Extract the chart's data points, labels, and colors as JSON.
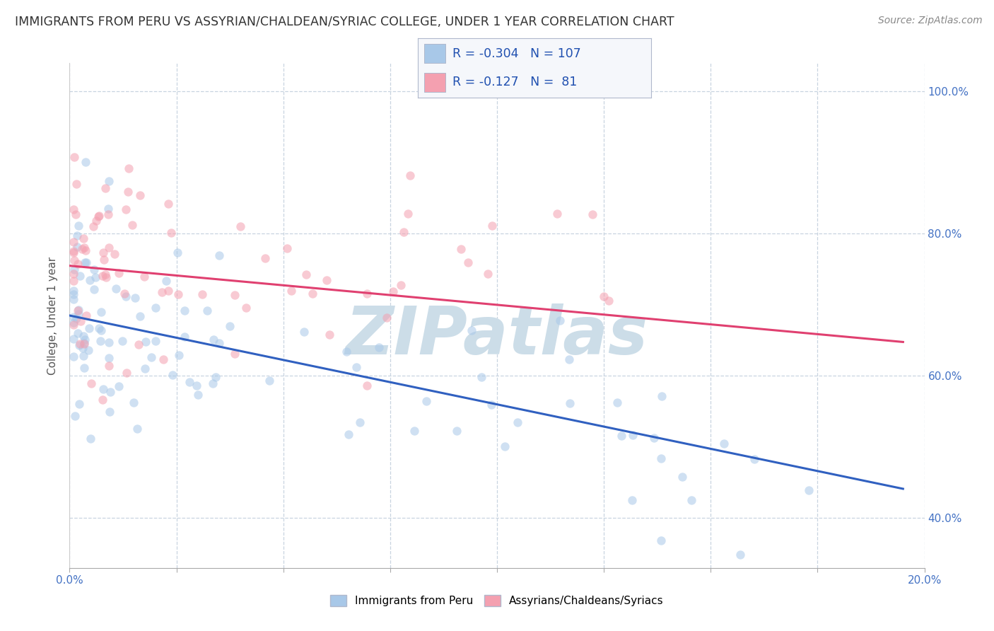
{
  "title": "IMMIGRANTS FROM PERU VS ASSYRIAN/CHALDEAN/SYRIAC COLLEGE, UNDER 1 YEAR CORRELATION CHART",
  "source": "Source: ZipAtlas.com",
  "ylabel": "College, Under 1 year",
  "xlim": [
    0.0,
    0.2
  ],
  "ylim": [
    0.33,
    1.04
  ],
  "xtick_positions": [
    0.0,
    0.025,
    0.05,
    0.075,
    0.1,
    0.125,
    0.15,
    0.175,
    0.2
  ],
  "ytick_positions": [
    0.4,
    0.6,
    0.8,
    1.0
  ],
  "ytick_labels": [
    "40.0%",
    "60.0%",
    "80.0%",
    "100.0%"
  ],
  "blue_color": "#a8c8e8",
  "pink_color": "#f4a0b0",
  "blue_line_color": "#3060c0",
  "pink_line_color": "#e04070",
  "blue_R": -0.304,
  "blue_N": 107,
  "pink_R": -0.127,
  "pink_N": 81,
  "watermark": "ZIPatlas",
  "watermark_color": "#ccdde8",
  "background_color": "#ffffff",
  "grid_color": "#c8d4e0",
  "legend_label_blue": "Immigrants from Peru",
  "legend_label_pink": "Assyrians/Chaldeans/Syriacs",
  "tick_color": "#4472c4",
  "title_color": "#333333",
  "source_color": "#888888",
  "blue_intercept": 0.685,
  "blue_slope": -1.25,
  "pink_intercept": 0.755,
  "pink_slope": -0.55
}
